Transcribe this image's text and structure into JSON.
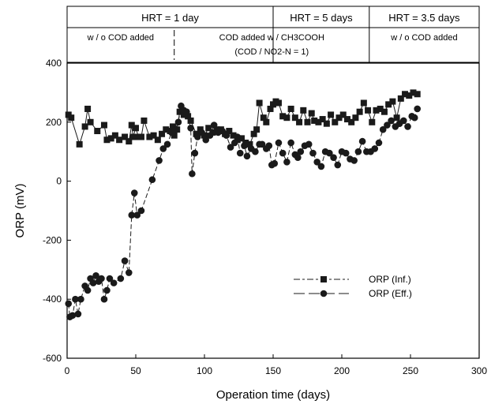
{
  "chart_data": {
    "type": "scatter",
    "xlabel": "Operation time (days)",
    "ylabel": "ORP (mV)",
    "xlim": [
      0,
      300
    ],
    "ylim": [
      -600,
      400
    ],
    "xticks": [
      "0",
      "50",
      "100",
      "150",
      "200",
      "250",
      "300"
    ],
    "yticks": [
      "-600",
      "-400",
      "-200",
      "0",
      "200",
      "400"
    ],
    "legend_position": "lower-right",
    "grid": false,
    "phases": [
      {
        "label": "HRT = 1 day",
        "start": 0,
        "end": 150
      },
      {
        "label": "HRT = 5 days",
        "start": 150,
        "end": 220
      },
      {
        "label": "HRT = 3.5 days",
        "start": 220,
        "end": 300
      }
    ],
    "conditions": [
      {
        "label": "w / o COD added",
        "start": 0,
        "end": 78
      },
      {
        "label": "COD added  w / CH3COOH",
        "sublabel": "(COD / NO2-N = 1)",
        "start": 78,
        "end": 220
      },
      {
        "label": "w / o COD added",
        "start": 220,
        "end": 300
      }
    ],
    "series": [
      {
        "name": "ORP (Inf.)",
        "marker": "square",
        "points": [
          [
            1,
            225
          ],
          [
            3,
            215
          ],
          [
            9,
            125
          ],
          [
            13,
            185
          ],
          [
            15,
            245
          ],
          [
            17,
            200
          ],
          [
            22,
            170
          ],
          [
            27,
            190
          ],
          [
            29,
            140
          ],
          [
            32,
            145
          ],
          [
            35,
            155
          ],
          [
            38,
            140
          ],
          [
            42,
            150
          ],
          [
            45,
            135
          ],
          [
            47,
            190
          ],
          [
            48,
            150
          ],
          [
            50,
            180
          ],
          [
            52,
            150
          ],
          [
            54,
            150
          ],
          [
            56,
            205
          ],
          [
            60,
            150
          ],
          [
            63,
            155
          ],
          [
            66,
            140
          ],
          [
            69,
            160
          ],
          [
            72,
            175
          ],
          [
            75,
            170
          ],
          [
            77,
            185
          ],
          [
            78,
            155
          ],
          [
            80,
            175
          ],
          [
            82,
            235
          ],
          [
            85,
            225
          ],
          [
            88,
            220
          ],
          [
            90,
            205
          ],
          [
            94,
            160
          ],
          [
            97,
            175
          ],
          [
            100,
            155
          ],
          [
            103,
            180
          ],
          [
            106,
            165
          ],
          [
            109,
            175
          ],
          [
            112,
            175
          ],
          [
            115,
            160
          ],
          [
            118,
            170
          ],
          [
            121,
            155
          ],
          [
            124,
            140
          ],
          [
            127,
            145
          ],
          [
            130,
            130
          ],
          [
            133,
            125
          ],
          [
            136,
            160
          ],
          [
            138,
            175
          ],
          [
            140,
            265
          ],
          [
            143,
            215
          ],
          [
            145,
            200
          ],
          [
            148,
            245
          ],
          [
            150,
            260
          ],
          [
            152,
            270
          ],
          [
            154,
            265
          ],
          [
            157,
            220
          ],
          [
            160,
            215
          ],
          [
            163,
            245
          ],
          [
            166,
            215
          ],
          [
            169,
            200
          ],
          [
            172,
            240
          ],
          [
            175,
            200
          ],
          [
            178,
            230
          ],
          [
            180,
            205
          ],
          [
            183,
            200
          ],
          [
            186,
            210
          ],
          [
            189,
            195
          ],
          [
            192,
            225
          ],
          [
            195,
            200
          ],
          [
            198,
            215
          ],
          [
            201,
            225
          ],
          [
            204,
            210
          ],
          [
            207,
            200
          ],
          [
            210,
            215
          ],
          [
            213,
            235
          ],
          [
            216,
            265
          ],
          [
            219,
            240
          ],
          [
            222,
            200
          ],
          [
            225,
            240
          ],
          [
            228,
            245
          ],
          [
            231,
            235
          ],
          [
            234,
            260
          ],
          [
            237,
            270
          ],
          [
            240,
            215
          ],
          [
            243,
            280
          ],
          [
            246,
            295
          ],
          [
            249,
            290
          ],
          [
            252,
            300
          ],
          [
            255,
            295
          ]
        ]
      },
      {
        "name": "ORP (Eff.)",
        "marker": "circle",
        "points": [
          [
            1,
            -415
          ],
          [
            2,
            -460
          ],
          [
            4,
            -455
          ],
          [
            6,
            -400
          ],
          [
            8,
            -450
          ],
          [
            10,
            -400
          ],
          [
            13,
            -355
          ],
          [
            15,
            -370
          ],
          [
            17,
            -330
          ],
          [
            19,
            -345
          ],
          [
            21,
            -320
          ],
          [
            23,
            -340
          ],
          [
            25,
            -330
          ],
          [
            27,
            -400
          ],
          [
            29,
            -370
          ],
          [
            31,
            -330
          ],
          [
            34,
            -345
          ],
          [
            39,
            -330
          ],
          [
            42,
            -270
          ],
          [
            45,
            -310
          ],
          [
            47,
            -115
          ],
          [
            49,
            -40
          ],
          [
            51,
            -115
          ],
          [
            54,
            -100
          ],
          [
            62,
            5
          ],
          [
            67,
            70
          ],
          [
            70,
            110
          ],
          [
            73,
            125
          ],
          [
            76,
            165
          ],
          [
            78,
            170
          ],
          [
            81,
            200
          ],
          [
            83,
            255
          ],
          [
            85,
            240
          ],
          [
            87,
            235
          ],
          [
            90,
            180
          ],
          [
            91,
            25
          ],
          [
            93,
            95
          ],
          [
            95,
            150
          ],
          [
            98,
            165
          ],
          [
            101,
            140
          ],
          [
            104,
            155
          ],
          [
            107,
            190
          ],
          [
            110,
            165
          ],
          [
            113,
            170
          ],
          [
            116,
            155
          ],
          [
            119,
            115
          ],
          [
            122,
            130
          ],
          [
            124,
            150
          ],
          [
            126,
            95
          ],
          [
            129,
            120
          ],
          [
            131,
            85
          ],
          [
            134,
            110
          ],
          [
            137,
            100
          ],
          [
            140,
            125
          ],
          [
            142,
            125
          ],
          [
            145,
            110
          ],
          [
            147,
            120
          ],
          [
            149,
            55
          ],
          [
            151,
            60
          ],
          [
            154,
            130
          ],
          [
            157,
            95
          ],
          [
            160,
            65
          ],
          [
            163,
            130
          ],
          [
            166,
            90
          ],
          [
            168,
            80
          ],
          [
            170,
            100
          ],
          [
            173,
            120
          ],
          [
            176,
            125
          ],
          [
            179,
            95
          ],
          [
            182,
            65
          ],
          [
            185,
            50
          ],
          [
            188,
            100
          ],
          [
            191,
            95
          ],
          [
            194,
            80
          ],
          [
            197,
            55
          ],
          [
            200,
            100
          ],
          [
            203,
            95
          ],
          [
            206,
            75
          ],
          [
            209,
            70
          ],
          [
            212,
            100
          ],
          [
            215,
            135
          ],
          [
            218,
            100
          ],
          [
            221,
            100
          ],
          [
            224,
            110
          ],
          [
            227,
            130
          ],
          [
            230,
            175
          ],
          [
            233,
            190
          ],
          [
            236,
            205
          ],
          [
            239,
            185
          ],
          [
            242,
            195
          ],
          [
            245,
            205
          ],
          [
            248,
            185
          ],
          [
            251,
            220
          ],
          [
            253,
            215
          ],
          [
            255,
            245
          ]
        ]
      }
    ]
  }
}
